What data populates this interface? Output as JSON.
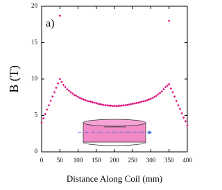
{
  "chart_data": {
    "type": "scatter",
    "annotation": "a)",
    "xlabel": "Distance Along Coil (mm)",
    "ylabel": "B (T)",
    "color": "#d81b80",
    "x": [
      0,
      5,
      10,
      15,
      20,
      25,
      30,
      35,
      40,
      45,
      50,
      55,
      60,
      65,
      70,
      75,
      80,
      85,
      90,
      95,
      100,
      105,
      110,
      115,
      120,
      125,
      130,
      135,
      140,
      145,
      150,
      155,
      160,
      165,
      170,
      175,
      180,
      185,
      190,
      195,
      200,
      205,
      210,
      215,
      220,
      225,
      230,
      235,
      240,
      245,
      250,
      255,
      260,
      265,
      270,
      275,
      280,
      285,
      290,
      295,
      300,
      305,
      310,
      315,
      320,
      325,
      330,
      335,
      340,
      345,
      350,
      355,
      360,
      365,
      370,
      375,
      380,
      385,
      390,
      395,
      400,
      50,
      350
    ],
    "y": [
      4.0,
      4.6,
      5.2,
      5.8,
      6.4,
      7.0,
      7.6,
      8.2,
      8.8,
      9.4,
      10.0,
      9.6,
      9.2,
      8.9,
      8.6,
      8.4,
      8.2,
      8.0,
      7.8,
      7.7,
      7.55,
      7.4,
      7.3,
      7.2,
      7.1,
      7.0,
      6.95,
      6.9,
      6.8,
      6.75,
      6.7,
      6.6,
      6.55,
      6.5,
      6.45,
      6.4,
      6.4,
      6.35,
      6.35,
      6.3,
      6.3,
      6.3,
      6.3,
      6.35,
      6.35,
      6.4,
      6.4,
      6.45,
      6.5,
      6.55,
      6.6,
      6.65,
      6.7,
      6.75,
      6.8,
      6.9,
      6.95,
      7.0,
      7.1,
      7.2,
      7.3,
      7.4,
      7.55,
      7.7,
      7.9,
      8.1,
      8.3,
      8.6,
      8.9,
      9.1,
      9.3,
      8.7,
      8.2,
      7.6,
      7.0,
      6.4,
      5.9,
      5.3,
      4.7,
      4.2,
      3.6,
      18.7,
      18.0
    ],
    "xlim": [
      0,
      400
    ],
    "xticks": [
      0,
      50,
      100,
      150,
      200,
      250,
      300,
      350,
      400
    ],
    "ylim": [
      0,
      20
    ],
    "yticks": [
      0,
      5,
      10,
      15,
      20
    ]
  }
}
